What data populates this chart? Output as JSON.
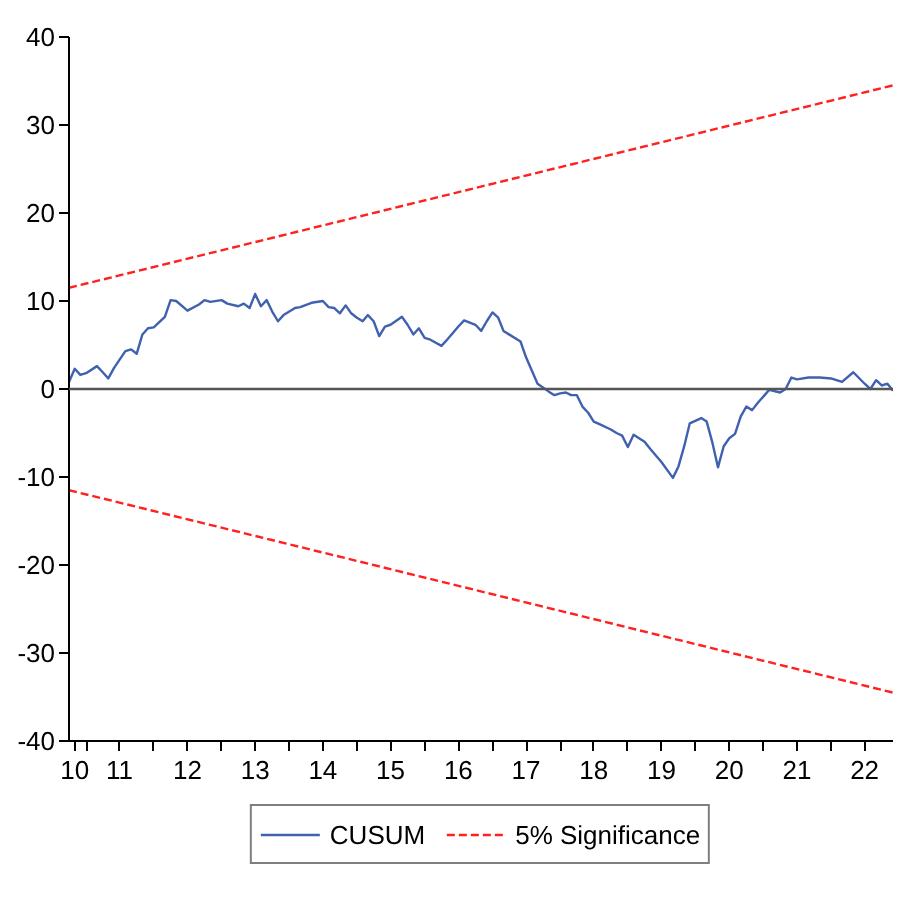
{
  "chart_data": {
    "type": "line",
    "xlim": [
      "2010-10",
      "2022-12"
    ],
    "ylim": [
      -40,
      40
    ],
    "xticks": [
      {
        "value": "2010-11",
        "label": "10"
      },
      {
        "value": "2011-01",
        "label": null
      },
      {
        "value": "2011-07",
        "label": "11"
      },
      {
        "value": "2012-01",
        "label": null
      },
      {
        "value": "2012-07",
        "label": "12"
      },
      {
        "value": "2013-01",
        "label": null
      },
      {
        "value": "2013-07",
        "label": "13"
      },
      {
        "value": "2014-01",
        "label": null
      },
      {
        "value": "2014-07",
        "label": "14"
      },
      {
        "value": "2015-01",
        "label": null
      },
      {
        "value": "2015-07",
        "label": "15"
      },
      {
        "value": "2016-01",
        "label": null
      },
      {
        "value": "2016-07",
        "label": "16"
      },
      {
        "value": "2017-01",
        "label": null
      },
      {
        "value": "2017-07",
        "label": "17"
      },
      {
        "value": "2018-01",
        "label": null
      },
      {
        "value": "2018-07",
        "label": "18"
      },
      {
        "value": "2019-01",
        "label": null
      },
      {
        "value": "2019-07",
        "label": "19"
      },
      {
        "value": "2020-01",
        "label": null
      },
      {
        "value": "2020-07",
        "label": "20"
      },
      {
        "value": "2021-01",
        "label": null
      },
      {
        "value": "2021-07",
        "label": "21"
      },
      {
        "value": "2022-01",
        "label": null
      },
      {
        "value": "2022-07",
        "label": "22"
      }
    ],
    "yticks": [
      -40,
      -30,
      -20,
      -10,
      0,
      10,
      20,
      30,
      40
    ],
    "legend": "bottom",
    "ref_lines": [
      {
        "axis": "y",
        "value": 0,
        "color": "#555555",
        "line_style": "solid"
      }
    ],
    "series": [
      {
        "name": "CUSUM",
        "color": "#4060b0",
        "line_style": "solid",
        "x": [
          "2010-10",
          "2010-11",
          "2010-12",
          "2011-01",
          "2011-03",
          "2011-04",
          "2011-05",
          "2011-06",
          "2011-08",
          "2011-09",
          "2011-10",
          "2011-11",
          "2011-12",
          "2012-01",
          "2012-03",
          "2012-04",
          "2012-05",
          "2012-07",
          "2012-09",
          "2012-10",
          "2012-11",
          "2013-01",
          "2013-02",
          "2013-04",
          "2013-05",
          "2013-06",
          "2013-07",
          "2013-08",
          "2013-09",
          "2013-10",
          "2013-11",
          "2013-12",
          "2014-02",
          "2014-03",
          "2014-05",
          "2014-07",
          "2014-08",
          "2014-09",
          "2014-10",
          "2014-11",
          "2014-12",
          "2015-01",
          "2015-02",
          "2015-03",
          "2015-04",
          "2015-05",
          "2015-06",
          "2015-07",
          "2015-09",
          "2015-10",
          "2015-11",
          "2015-12",
          "2016-01",
          "2016-02",
          "2016-04",
          "2016-05",
          "2016-07",
          "2016-08",
          "2016-10",
          "2016-11",
          "2016-12",
          "2017-01",
          "2017-02",
          "2017-03",
          "2017-06",
          "2017-07",
          "2017-08",
          "2017-09",
          "2017-11",
          "2017-12",
          "2018-01",
          "2018-02",
          "2018-03",
          "2018-04",
          "2018-05",
          "2018-06",
          "2018-07",
          "2018-08",
          "2018-10",
          "2018-11",
          "2018-12",
          "2019-01",
          "2019-02",
          "2019-04",
          "2019-05",
          "2019-07",
          "2019-09",
          "2019-10",
          "2019-11",
          "2019-12",
          "2020-02",
          "2020-03",
          "2020-04",
          "2020-05",
          "2020-06",
          "2020-07",
          "2020-08",
          "2020-09",
          "2020-10",
          "2020-11",
          "2020-12",
          "2021-02",
          "2021-04",
          "2021-05",
          "2021-06",
          "2021-07",
          "2021-09",
          "2021-11",
          "2022-01",
          "2022-03",
          "2022-05",
          "2022-07",
          "2022-08",
          "2022-09",
          "2022-10",
          "2022-11",
          "2022-12"
        ],
        "values": [
          0.8,
          2.3,
          1.6,
          1.8,
          2.6,
          1.9,
          1.2,
          2.4,
          4.3,
          4.5,
          4.0,
          6.2,
          6.9,
          7.0,
          8.2,
          10.1,
          10.0,
          8.9,
          9.6,
          10.1,
          9.9,
          10.1,
          9.7,
          9.4,
          9.7,
          9.2,
          10.8,
          9.4,
          10.1,
          8.8,
          7.7,
          8.4,
          9.2,
          9.3,
          9.8,
          10.0,
          9.3,
          9.2,
          8.6,
          9.5,
          8.6,
          8.1,
          7.7,
          8.4,
          7.7,
          6.0,
          7.1,
          7.3,
          8.2,
          7.3,
          6.2,
          6.9,
          5.8,
          5.6,
          4.9,
          5.6,
          7.1,
          7.8,
          7.3,
          6.6,
          7.7,
          8.7,
          8.1,
          6.6,
          5.4,
          3.6,
          2.1,
          0.6,
          -0.3,
          -0.7,
          -0.5,
          -0.4,
          -0.7,
          -0.7,
          -2.0,
          -2.7,
          -3.7,
          -4.0,
          -4.6,
          -5.0,
          -5.3,
          -6.6,
          -5.2,
          -6.0,
          -6.8,
          -8.3,
          -10.1,
          -8.8,
          -6.5,
          -3.9,
          -3.3,
          -3.7,
          -6.1,
          -8.9,
          -6.5,
          -5.6,
          -5.1,
          -3.1,
          -2.0,
          -2.4,
          -1.6,
          -0.1,
          -0.4,
          0.0,
          1.3,
          1.1,
          1.3,
          1.3,
          1.2,
          0.8,
          1.9,
          0.6,
          0.0,
          1.0,
          0.4,
          0.6,
          -0.2
        ]
      },
      {
        "name": "5% Significance",
        "color": "#ff2020",
        "line_style": "dashed",
        "x": [
          "2010-10",
          "2022-12"
        ],
        "values": [
          11.5,
          34.5
        ]
      },
      {
        "color": "#ff2020",
        "line_style": "dashed",
        "x": [
          "2010-10",
          "2022-12"
        ],
        "values": [
          -11.5,
          -34.5
        ]
      }
    ]
  }
}
